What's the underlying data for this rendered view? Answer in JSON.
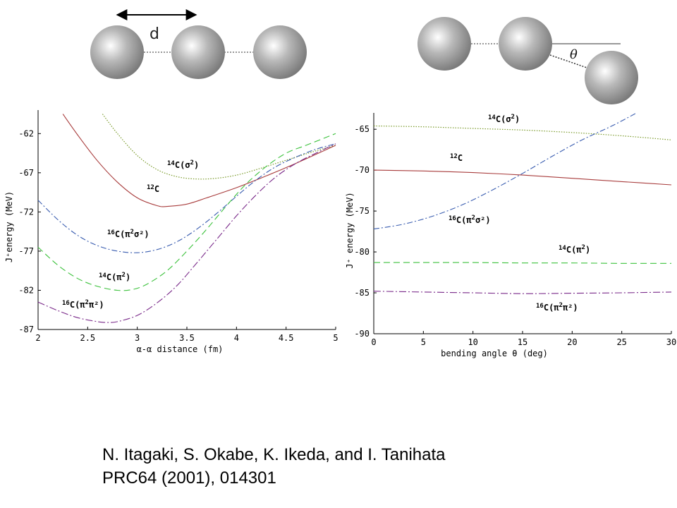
{
  "diagrams": {
    "left": {
      "spacing_label": "d"
    },
    "right": {
      "angle_label": "θ"
    }
  },
  "colors": {
    "sigma2": "#7a9a2a",
    "c12": "#a83c3c",
    "pi2sigma2": "#3a5db0",
    "pi2": "#3cc23c",
    "pi2pi2": "#7a2a8a",
    "ball_light": "#ffffff",
    "ball_dark": "#777777"
  },
  "citation": {
    "line1": "N. Itagaki, S. Okabe, K. Ikeda, and I. Tanihata",
    "line2": "PRC64 (2001), 014301"
  },
  "chart_data": [
    {
      "type": "line",
      "xlabel": "α-α distance (fm)",
      "ylabel": "J⁺energy (MeV)",
      "xlim": [
        2,
        5
      ],
      "ylim": [
        -87,
        -59
      ],
      "xticks": [
        "2",
        "2.5",
        "3",
        "3.5",
        "4",
        "4.5",
        "5"
      ],
      "yticks": [
        "-62",
        "-67",
        "-72",
        "-77",
        "-82",
        "-87"
      ],
      "grid": false,
      "series": [
        {
          "name": "14C(σ2)",
          "label_main": "14",
          "label_mid": "C(σ",
          "label_sup": "2",
          "label_end": ")",
          "color": "sigma2",
          "dash": "dotted",
          "x": [
            2.65,
            2.8,
            3.0,
            3.2,
            3.4,
            3.6,
            3.8,
            4.0,
            4.2,
            4.4,
            4.6,
            4.8,
            5.0
          ],
          "y": [
            -59.5,
            -62.0,
            -64.8,
            -66.6,
            -67.5,
            -67.8,
            -67.7,
            -67.3,
            -66.6,
            -65.8,
            -65.0,
            -64.2,
            -63.5
          ]
        },
        {
          "name": "12C",
          "label_main": "12",
          "label_mid": "C",
          "label_sup": "",
          "label_end": "",
          "color": "c12",
          "dash": "solid",
          "x": [
            2.25,
            2.4,
            2.6,
            2.8,
            3.0,
            3.2,
            3.3,
            3.5,
            3.7,
            4.0,
            4.3,
            4.6,
            5.0
          ],
          "y": [
            -59.5,
            -62.2,
            -65.5,
            -68.2,
            -70.2,
            -71.2,
            -71.3,
            -71.0,
            -70.2,
            -68.9,
            -67.4,
            -65.8,
            -63.5
          ]
        },
        {
          "name": "16C(π2σ2)",
          "label_main": "16",
          "label_mid": "C(π",
          "label_sup": "2",
          "label_end": "σ²)",
          "color": "pi2sigma2",
          "dash": "dashdot",
          "x": [
            2.0,
            2.2,
            2.4,
            2.6,
            2.8,
            3.0,
            3.2,
            3.4,
            3.6,
            3.8,
            4.0,
            4.2,
            4.4,
            4.6,
            4.8,
            5.0
          ],
          "y": [
            -70.5,
            -73.0,
            -75.0,
            -76.3,
            -77.0,
            -77.2,
            -76.8,
            -75.8,
            -74.2,
            -72.2,
            -70.0,
            -67.9,
            -66.2,
            -65.0,
            -64.0,
            -63.3
          ]
        },
        {
          "name": "14C(π2)",
          "label_main": "14",
          "label_mid": "C(π",
          "label_sup": "2",
          "label_end": ")",
          "color": "pi2",
          "dash": "dashed",
          "x": [
            2.0,
            2.2,
            2.4,
            2.6,
            2.8,
            2.95,
            3.1,
            3.3,
            3.5,
            3.7,
            3.9,
            4.1,
            4.3,
            4.5,
            4.7,
            5.0
          ],
          "y": [
            -76.5,
            -78.8,
            -80.5,
            -81.5,
            -82.0,
            -81.9,
            -81.2,
            -79.5,
            -77.0,
            -74.2,
            -71.2,
            -68.4,
            -66.2,
            -64.5,
            -63.5,
            -62.0
          ]
        },
        {
          "name": "16C(π2π2)",
          "label_main": "16",
          "label_mid": "C(π",
          "label_sup": "2",
          "label_end": "π²)",
          "color": "pi2pi2",
          "dash": "dashdot2",
          "x": [
            2.0,
            2.2,
            2.4,
            2.6,
            2.7,
            2.8,
            3.0,
            3.2,
            3.4,
            3.6,
            3.8,
            4.0,
            4.2,
            4.4,
            4.6,
            4.8,
            5.0
          ],
          "y": [
            -83.5,
            -84.6,
            -85.5,
            -86.0,
            -86.1,
            -86.0,
            -85.2,
            -83.6,
            -81.4,
            -78.5,
            -75.5,
            -72.5,
            -69.8,
            -67.5,
            -65.8,
            -64.5,
            -63.3
          ]
        }
      ]
    },
    {
      "type": "line",
      "xlabel": "bending angle θ (deg)",
      "ylabel": "J⁺ energy (MeV)",
      "xlim": [
        0,
        30
      ],
      "ylim": [
        -90,
        -63
      ],
      "xticks": [
        "0",
        "5",
        "10",
        "15",
        "20",
        "25",
        "30"
      ],
      "yticks": [
        "-65",
        "-70",
        "-75",
        "-80",
        "-85",
        "-90"
      ],
      "grid": false,
      "series": [
        {
          "name": "14C(σ2)",
          "label_main": "14",
          "label_mid": "C(σ",
          "label_sup": "2",
          "label_end": ")",
          "color": "sigma2",
          "dash": "dotted",
          "x": [
            0,
            5,
            10,
            15,
            20,
            25,
            30
          ],
          "y": [
            -64.6,
            -64.7,
            -64.9,
            -65.1,
            -65.4,
            -65.8,
            -66.3
          ]
        },
        {
          "name": "12C",
          "label_main": "12",
          "label_mid": "C",
          "label_sup": "",
          "label_end": "",
          "color": "c12",
          "dash": "solid",
          "x": [
            0,
            5,
            10,
            15,
            20,
            25,
            30
          ],
          "y": [
            -70.0,
            -70.1,
            -70.3,
            -70.6,
            -71.0,
            -71.4,
            -71.8
          ]
        },
        {
          "name": "16C(π2σ2)",
          "label_main": "16",
          "label_mid": "C(π",
          "label_sup": "2",
          "label_end": "σ²)",
          "color": "pi2sigma2",
          "dash": "dashdot",
          "x": [
            0,
            3,
            6,
            9,
            12,
            15,
            18,
            21,
            24,
            26.5
          ],
          "y": [
            -77.2,
            -76.6,
            -75.6,
            -74.2,
            -72.4,
            -70.4,
            -68.3,
            -66.3,
            -64.6,
            -63.0
          ]
        },
        {
          "name": "14C(π2)",
          "label_main": "14",
          "label_mid": "C(π",
          "label_sup": "2",
          "label_end": ")",
          "color": "pi2",
          "dash": "dashed",
          "x": [
            0,
            5,
            10,
            15,
            20,
            25,
            30
          ],
          "y": [
            -81.3,
            -81.3,
            -81.3,
            -81.35,
            -81.35,
            -81.4,
            -81.4
          ]
        },
        {
          "name": "16C(π2π2)",
          "label_main": "16",
          "label_mid": "C(π",
          "label_sup": "2",
          "label_end": "π²)",
          "color": "pi2pi2",
          "dash": "dashdot2",
          "x": [
            0,
            5,
            10,
            15,
            20,
            25,
            30
          ],
          "y": [
            -84.8,
            -84.9,
            -85.0,
            -85.1,
            -85.05,
            -85.0,
            -84.9
          ]
        }
      ]
    }
  ]
}
